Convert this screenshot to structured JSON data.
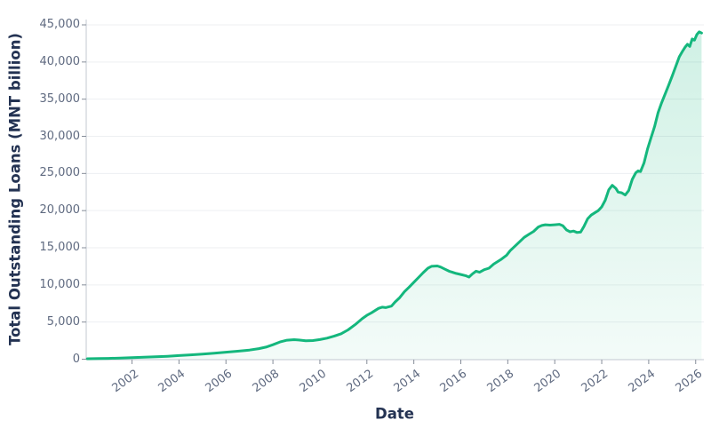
{
  "colors": {
    "line": "#14b77d",
    "fill_top": "rgba(20,183,125,0.20)",
    "fill_bottom": "rgba(20,183,125,0.05)",
    "axis_line": "#cdd2d9",
    "tick_mark": "#868d99",
    "gridline": "#edeff2",
    "tick_label": "#5f6a80",
    "axis_title": "#233252"
  },
  "chart_data": {
    "type": "area",
    "title": "",
    "xlabel": "Date",
    "ylabel": "Total Outstanding Loans (MNT billion)",
    "legend": "none",
    "grid": "horizontal",
    "x_range": [
      2000.05,
      2026.35
    ],
    "y_range": [
      0,
      45000
    ],
    "x_ticks": [
      {
        "value": 2002,
        "label": "2002"
      },
      {
        "value": 2004,
        "label": "2004"
      },
      {
        "value": 2006,
        "label": "2006"
      },
      {
        "value": 2008,
        "label": "2008"
      },
      {
        "value": 2010,
        "label": "2010"
      },
      {
        "value": 2012,
        "label": "2012"
      },
      {
        "value": 2014,
        "label": "2014"
      },
      {
        "value": 2016,
        "label": "2016"
      },
      {
        "value": 2018,
        "label": "2018"
      },
      {
        "value": 2020,
        "label": "2020"
      },
      {
        "value": 2022,
        "label": "2022"
      },
      {
        "value": 2024,
        "label": "2024"
      },
      {
        "value": 2026,
        "label": "2026"
      }
    ],
    "y_ticks": [
      {
        "value": 0,
        "label": "0"
      },
      {
        "value": 5000,
        "label": "5,000"
      },
      {
        "value": 10000,
        "label": "10,000"
      },
      {
        "value": 15000,
        "label": "15,000"
      },
      {
        "value": 20000,
        "label": "20,000"
      },
      {
        "value": 25000,
        "label": "25,000"
      },
      {
        "value": 30000,
        "label": "30,000"
      },
      {
        "value": 35000,
        "label": "35,000"
      },
      {
        "value": 40000,
        "label": "40,000"
      },
      {
        "value": 45000,
        "label": "45,000"
      }
    ],
    "series": [
      {
        "name": "Total Outstanding Loans",
        "points": [
          [
            2000.1,
            55
          ],
          [
            2000.6,
            85
          ],
          [
            2001.0,
            110
          ],
          [
            2001.5,
            155
          ],
          [
            2002.0,
            220
          ],
          [
            2002.5,
            265
          ],
          [
            2003.0,
            320
          ],
          [
            2003.5,
            395
          ],
          [
            2004.0,
            490
          ],
          [
            2004.5,
            580
          ],
          [
            2005.0,
            690
          ],
          [
            2005.5,
            810
          ],
          [
            2006.0,
            940
          ],
          [
            2006.5,
            1080
          ],
          [
            2007.0,
            1230
          ],
          [
            2007.4,
            1420
          ],
          [
            2007.7,
            1620
          ],
          [
            2008.0,
            1950
          ],
          [
            2008.3,
            2320
          ],
          [
            2008.6,
            2560
          ],
          [
            2008.9,
            2630
          ],
          [
            2009.1,
            2580
          ],
          [
            2009.4,
            2490
          ],
          [
            2009.7,
            2510
          ],
          [
            2010.0,
            2640
          ],
          [
            2010.3,
            2830
          ],
          [
            2010.6,
            3090
          ],
          [
            2010.9,
            3420
          ],
          [
            2011.2,
            3950
          ],
          [
            2011.5,
            4650
          ],
          [
            2011.8,
            5450
          ],
          [
            2012.0,
            5900
          ],
          [
            2012.2,
            6250
          ],
          [
            2012.5,
            6850
          ],
          [
            2012.65,
            7000
          ],
          [
            2012.8,
            6950
          ],
          [
            2013.05,
            7150
          ],
          [
            2013.2,
            7700
          ],
          [
            2013.4,
            8300
          ],
          [
            2013.6,
            9100
          ],
          [
            2013.8,
            9700
          ],
          [
            2014.0,
            10350
          ],
          [
            2014.2,
            11000
          ],
          [
            2014.4,
            11650
          ],
          [
            2014.6,
            12250
          ],
          [
            2014.75,
            12500
          ],
          [
            2015.0,
            12550
          ],
          [
            2015.15,
            12400
          ],
          [
            2015.3,
            12150
          ],
          [
            2015.5,
            11850
          ],
          [
            2015.8,
            11550
          ],
          [
            2016.0,
            11400
          ],
          [
            2016.2,
            11250
          ],
          [
            2016.35,
            11050
          ],
          [
            2016.5,
            11500
          ],
          [
            2016.65,
            11850
          ],
          [
            2016.8,
            11700
          ],
          [
            2017.0,
            12050
          ],
          [
            2017.2,
            12250
          ],
          [
            2017.4,
            12800
          ],
          [
            2017.7,
            13400
          ],
          [
            2017.95,
            14000
          ],
          [
            2018.1,
            14600
          ],
          [
            2018.3,
            15200
          ],
          [
            2018.5,
            15800
          ],
          [
            2018.7,
            16400
          ],
          [
            2018.9,
            16800
          ],
          [
            2019.1,
            17200
          ],
          [
            2019.3,
            17800
          ],
          [
            2019.45,
            18000
          ],
          [
            2019.6,
            18100
          ],
          [
            2019.8,
            18050
          ],
          [
            2020.0,
            18100
          ],
          [
            2020.2,
            18150
          ],
          [
            2020.35,
            17950
          ],
          [
            2020.5,
            17400
          ],
          [
            2020.65,
            17150
          ],
          [
            2020.8,
            17250
          ],
          [
            2020.95,
            17050
          ],
          [
            2021.1,
            17100
          ],
          [
            2021.25,
            17900
          ],
          [
            2021.4,
            18900
          ],
          [
            2021.55,
            19400
          ],
          [
            2021.7,
            19700
          ],
          [
            2021.85,
            20000
          ],
          [
            2022.0,
            20500
          ],
          [
            2022.15,
            21400
          ],
          [
            2022.3,
            22800
          ],
          [
            2022.45,
            23400
          ],
          [
            2022.6,
            23000
          ],
          [
            2022.7,
            22500
          ],
          [
            2022.85,
            22400
          ],
          [
            2023.0,
            22100
          ],
          [
            2023.15,
            22700
          ],
          [
            2023.3,
            24200
          ],
          [
            2023.45,
            25100
          ],
          [
            2023.55,
            25350
          ],
          [
            2023.65,
            25250
          ],
          [
            2023.8,
            26400
          ],
          [
            2023.95,
            28300
          ],
          [
            2024.1,
            29800
          ],
          [
            2024.25,
            31300
          ],
          [
            2024.4,
            33200
          ],
          [
            2024.55,
            34500
          ],
          [
            2024.7,
            35700
          ],
          [
            2024.85,
            36900
          ],
          [
            2025.0,
            38100
          ],
          [
            2025.15,
            39400
          ],
          [
            2025.3,
            40700
          ],
          [
            2025.45,
            41500
          ],
          [
            2025.55,
            42000
          ],
          [
            2025.65,
            42400
          ],
          [
            2025.75,
            42100
          ],
          [
            2025.85,
            43100
          ],
          [
            2025.95,
            42950
          ],
          [
            2026.05,
            43700
          ],
          [
            2026.15,
            44050
          ],
          [
            2026.25,
            43900
          ]
        ]
      }
    ]
  }
}
